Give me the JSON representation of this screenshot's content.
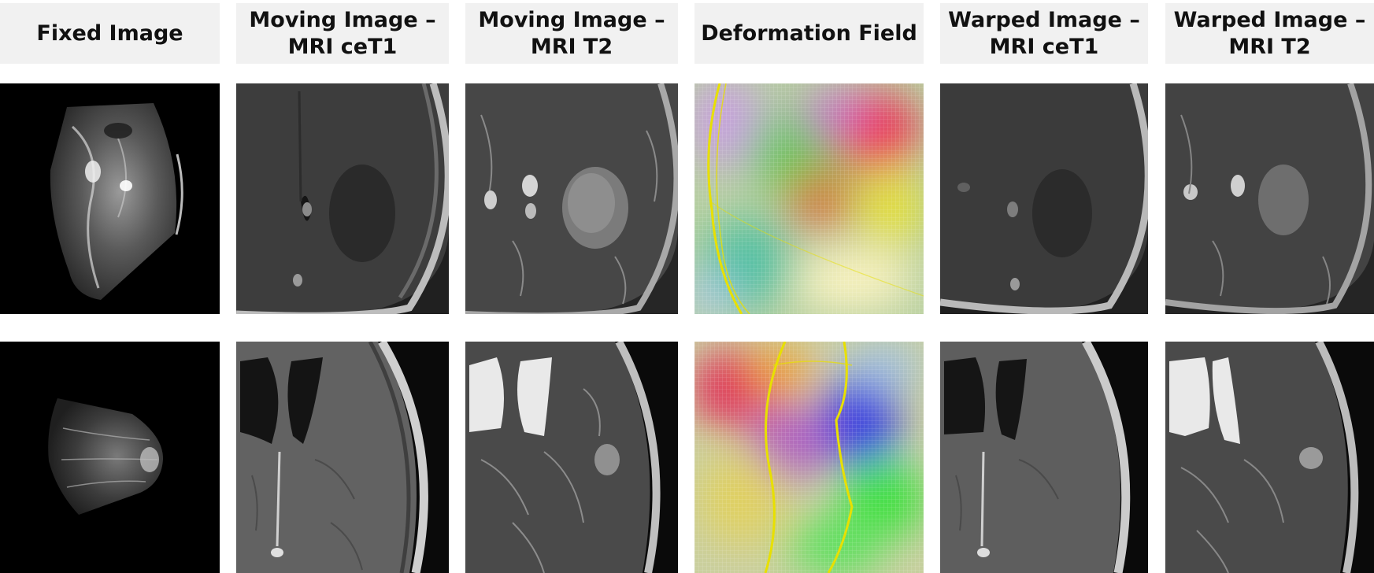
{
  "headers": [
    {
      "line1": "Fixed Image",
      "line2": ""
    },
    {
      "line1": "Moving Image –",
      "line2": "MRI ceT1"
    },
    {
      "line1": "Moving Image –",
      "line2": "MRI T2"
    },
    {
      "line1": "Deformation Field",
      "line2": ""
    },
    {
      "line1": "Warped Image –",
      "line2": "MRI ceT1"
    },
    {
      "line1": "Warped Image –",
      "line2": "MRI T2"
    }
  ],
  "rows": [
    {
      "name": "case-1",
      "cells": [
        "ultrasound",
        "mri-cet1-axial",
        "mri-t2-axial",
        "deformation-field",
        "warped-cet1-axial",
        "warped-t2-axial"
      ]
    },
    {
      "name": "case-2",
      "cells": [
        "ultrasound",
        "mri-cet1-axial",
        "mri-t2-axial",
        "deformation-field",
        "warped-cet1-axial",
        "warped-t2-axial"
      ]
    }
  ],
  "colors": {
    "header_bg": "#f1f1f1",
    "image_bg": "#000000",
    "field_lines": "#e8e000"
  }
}
